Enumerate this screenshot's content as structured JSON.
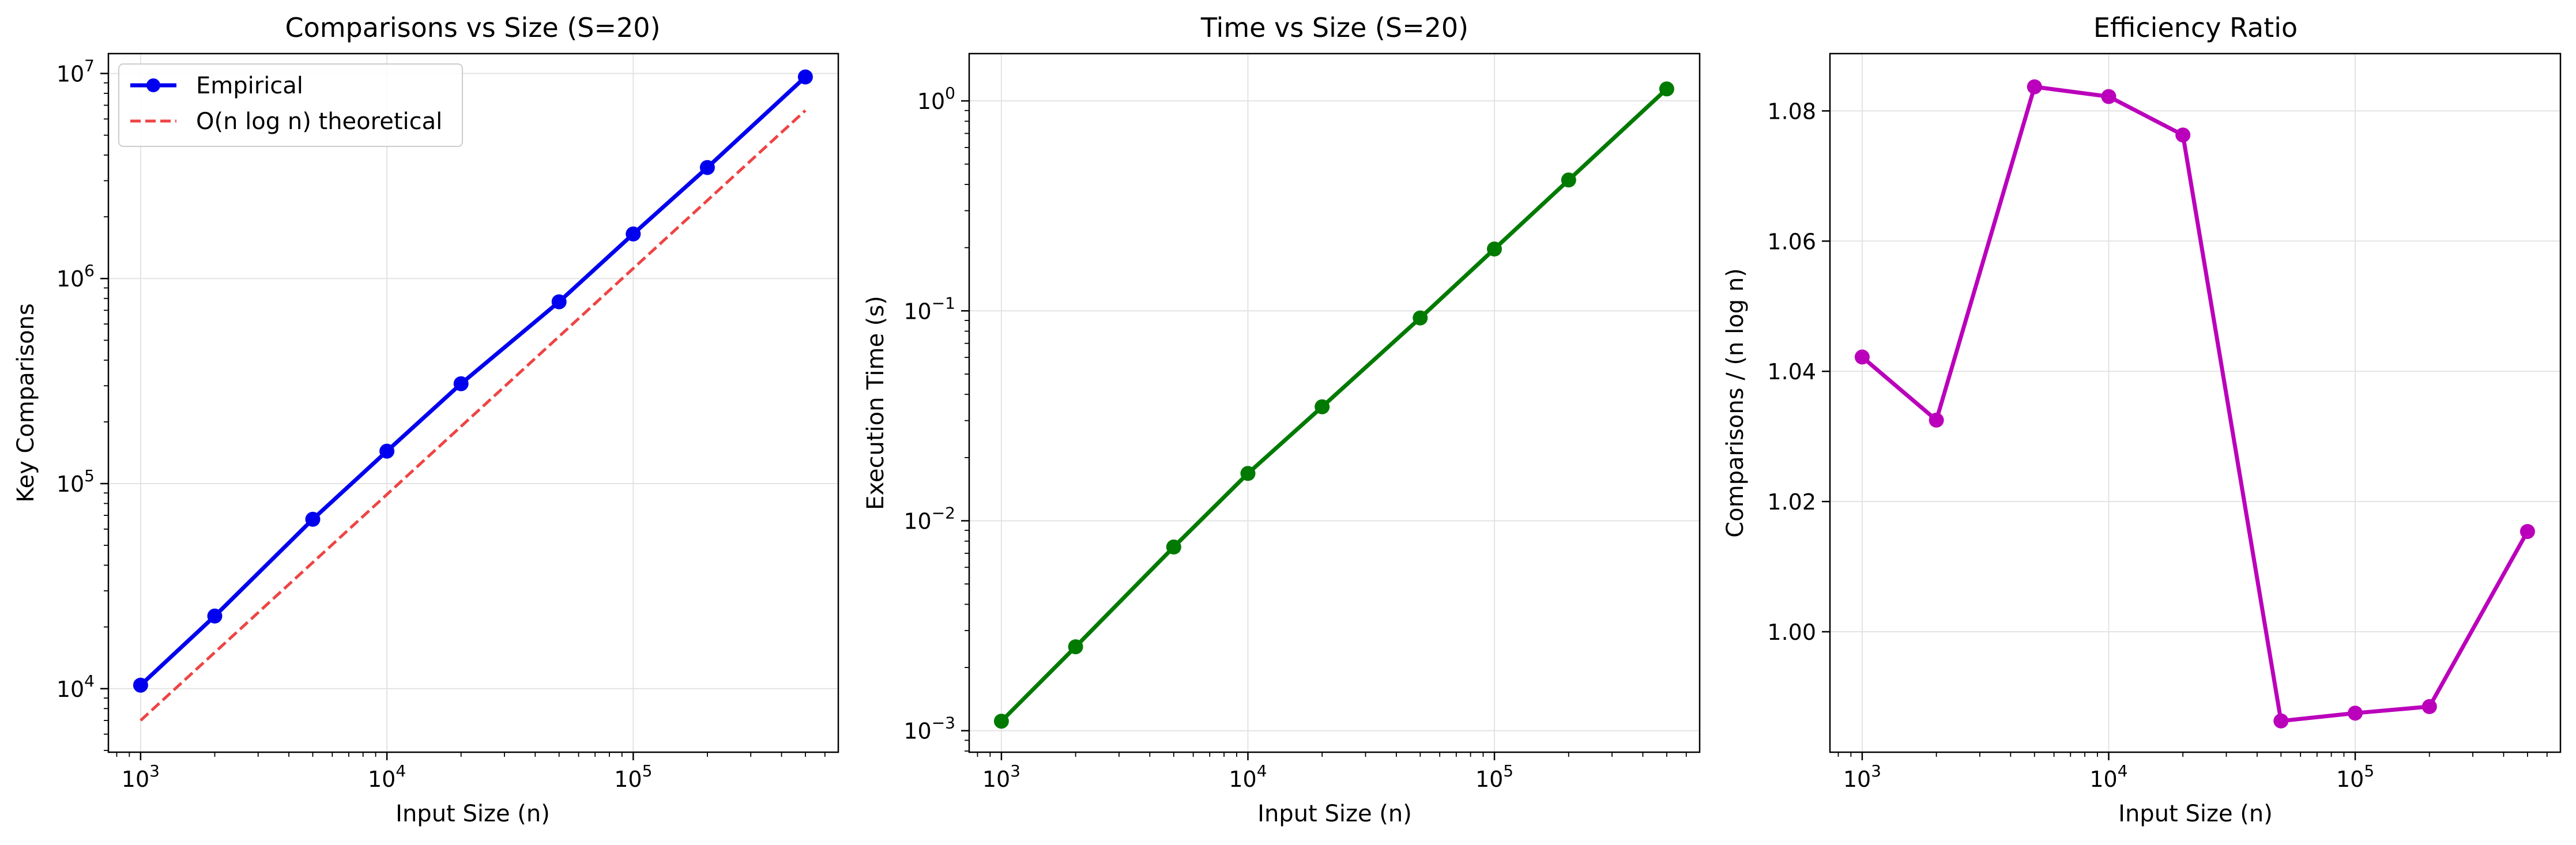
{
  "figure": {
    "background": "#ffffff",
    "grid_color": "#e3e3e3"
  },
  "chart_data": [
    {
      "type": "line",
      "title": "Comparisons vs Size (S=20)",
      "xlabel": "Input Size (n)",
      "ylabel": "Key Comparisons",
      "xscale": "log",
      "yscale": "log",
      "xlim": [
        740,
        680000
      ],
      "ylim": [
        4900,
        12500000
      ],
      "xticks": [
        {
          "value": 1000,
          "base": "10",
          "exp": "3"
        },
        {
          "value": 10000,
          "base": "10",
          "exp": "4"
        },
        {
          "value": 100000,
          "base": "10",
          "exp": "5"
        }
      ],
      "yticks": [
        {
          "value": 10000,
          "base": "10",
          "exp": "4"
        },
        {
          "value": 100000,
          "base": "10",
          "exp": "5"
        },
        {
          "value": 1000000,
          "base": "10",
          "exp": "6"
        },
        {
          "value": 10000000,
          "base": "10",
          "exp": "7"
        }
      ],
      "grid": true,
      "legend": {
        "position": "top-left"
      },
      "series": [
        {
          "name": "Empirical",
          "color": "#0000ee",
          "style": "solid",
          "marker": "circle",
          "x": [
            1000,
            2000,
            5000,
            10000,
            20000,
            50000,
            100000,
            200000,
            500000
          ],
          "y": [
            10400,
            22600,
            67000,
            144000,
            307000,
            770000,
            1650000,
            3480000,
            9620000
          ]
        },
        {
          "name": "O(n log n) theoretical",
          "color": "#ee4444",
          "style": "dashed",
          "marker": "none",
          "x": [
            1000,
            500000
          ],
          "y": [
            7000,
            6600000
          ]
        }
      ]
    },
    {
      "type": "line",
      "title": "Time vs Size (S=20)",
      "xlabel": "Input Size (n)",
      "ylabel": "Execution Time (s)",
      "xscale": "log",
      "yscale": "log",
      "xlim": [
        740,
        680000
      ],
      "ylim": [
        0.00079,
        1.68
      ],
      "xticks": [
        {
          "value": 1000,
          "base": "10",
          "exp": "3"
        },
        {
          "value": 10000,
          "base": "10",
          "exp": "4"
        },
        {
          "value": 100000,
          "base": "10",
          "exp": "5"
        }
      ],
      "yticks": [
        {
          "value": 0.001,
          "base": "10",
          "exp": "−3"
        },
        {
          "value": 0.01,
          "base": "10",
          "exp": "−2"
        },
        {
          "value": 0.1,
          "base": "10",
          "exp": "−1"
        },
        {
          "value": 1,
          "base": "10",
          "exp": "0"
        }
      ],
      "grid": true,
      "series": [
        {
          "color": "#007a00",
          "style": "solid",
          "marker": "circle",
          "x": [
            1000,
            2000,
            5000,
            10000,
            20000,
            50000,
            100000,
            200000,
            500000
          ],
          "y": [
            0.00111,
            0.00251,
            0.0075,
            0.0168,
            0.0349,
            0.0925,
            0.197,
            0.42,
            1.14
          ]
        }
      ]
    },
    {
      "type": "line",
      "title": "Efficiency Ratio",
      "xlabel": "Input Size (n)",
      "ylabel": "Comparisons / (n log n)",
      "xscale": "log",
      "yscale": "linear",
      "xlim": [
        740,
        680000
      ],
      "ylim": [
        0.9815,
        1.0888
      ],
      "xticks": [
        {
          "value": 1000,
          "base": "10",
          "exp": "3"
        },
        {
          "value": 10000,
          "base": "10",
          "exp": "4"
        },
        {
          "value": 100000,
          "base": "10",
          "exp": "5"
        }
      ],
      "yticks": [
        {
          "value": 1.0,
          "label": "1.00"
        },
        {
          "value": 1.02,
          "label": "1.02"
        },
        {
          "value": 1.04,
          "label": "1.04"
        },
        {
          "value": 1.06,
          "label": "1.06"
        },
        {
          "value": 1.08,
          "label": "1.08"
        }
      ],
      "grid": true,
      "series": [
        {
          "color": "#bb00bb",
          "style": "solid",
          "marker": "circle",
          "x": [
            1000,
            2000,
            5000,
            10000,
            20000,
            50000,
            100000,
            200000,
            500000
          ],
          "y": [
            1.0422,
            1.0325,
            1.0837,
            1.0822,
            1.0763,
            0.9863,
            0.9875,
            0.9885,
            1.0154
          ]
        }
      ]
    }
  ]
}
